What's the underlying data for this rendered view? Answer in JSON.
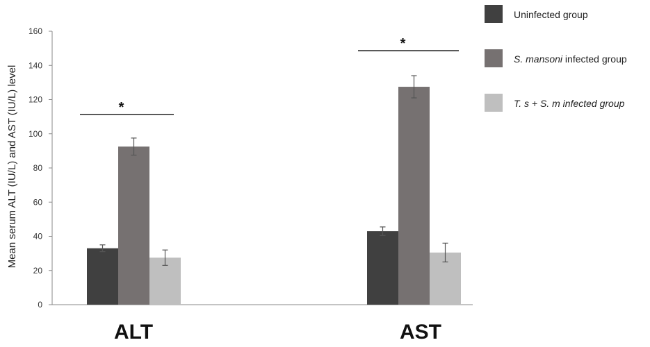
{
  "chart_data": {
    "type": "bar",
    "ylabel": "Mean serum ALT  (IU/L) and AST (IU/L) level",
    "ylim": [
      0,
      160
    ],
    "yticks": [
      0,
      20,
      40,
      60,
      80,
      100,
      120,
      140,
      160
    ],
    "categories": [
      "ALT",
      "AST"
    ],
    "series": [
      {
        "name": "Uninfected group",
        "color": "#404040",
        "values": [
          33,
          43
        ],
        "errors": [
          2,
          2.5
        ]
      },
      {
        "name": "S. mansoni infected group",
        "name_italic": "S. mansoni",
        "name_rest": " infected group",
        "color": "#767171",
        "values": [
          92.5,
          127.5
        ],
        "errors": [
          5,
          6.5
        ]
      },
      {
        "name": "T. s + S. m infected group",
        "color": "#bfbfbf",
        "values": [
          27.5,
          30.5
        ],
        "errors": [
          4.5,
          5.5
        ]
      }
    ],
    "significance": [
      {
        "category": "ALT",
        "label": "*"
      },
      {
        "category": "AST",
        "label": "*"
      }
    ],
    "legend_position": "top-right",
    "grid": false
  }
}
